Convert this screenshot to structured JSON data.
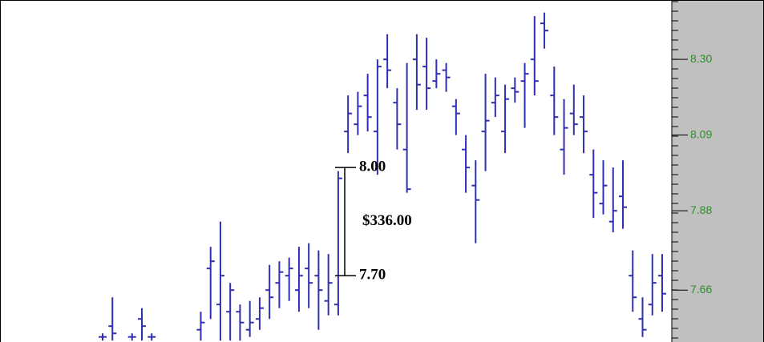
{
  "chart_data": {
    "type": "ohlc",
    "color": "#2f2fb0",
    "categories": [
      null,
      null,
      null,
      null,
      null,
      null,
      null,
      null,
      null,
      null,
      null,
      null,
      null,
      null,
      null,
      null,
      null,
      null,
      null,
      null,
      null,
      null,
      null,
      null,
      null,
      null,
      null,
      null,
      null,
      null,
      null,
      null,
      null,
      null,
      null,
      null,
      null,
      null,
      null,
      null,
      null,
      null,
      null,
      null,
      null,
      null,
      null,
      null,
      null,
      null,
      null,
      null,
      null,
      null,
      null,
      null,
      null,
      null
    ],
    "open": [
      7.53,
      7.56,
      null,
      7.53,
      7.58,
      7.53,
      null,
      null,
      null,
      null,
      7.55,
      7.72,
      7.62,
      7.6,
      7.6,
      7.55,
      7.58,
      7.66,
      7.68,
      7.7,
      7.66,
      7.72,
      7.7,
      7.63,
      7.62,
      8.1,
      8.12,
      8.2,
      8.1,
      8.3,
      8.18,
      8.05,
      8.3,
      8.28,
      8.24,
      8.27,
      8.17,
      8.05,
      7.95,
      8.1,
      8.18,
      8.1,
      8.22,
      8.24,
      8.3,
      8.4,
      8.2,
      8.05,
      8.15,
      8.14,
      7.98,
      7.9,
      7.85,
      7.92,
      7.7,
      7.58,
      7.62,
      7.7
    ],
    "high": [
      7.54,
      7.64,
      null,
      7.54,
      7.61,
      7.54,
      null,
      null,
      null,
      null,
      7.6,
      7.78,
      7.85,
      7.68,
      7.62,
      7.63,
      7.64,
      7.73,
      7.74,
      7.75,
      7.78,
      7.79,
      7.77,
      7.76,
      7.99,
      8.2,
      8.21,
      8.26,
      8.3,
      8.37,
      8.22,
      8.29,
      8.37,
      8.36,
      8.3,
      8.29,
      8.19,
      8.09,
      8.02,
      8.26,
      8.25,
      8.23,
      8.25,
      8.29,
      8.42,
      8.43,
      8.28,
      8.19,
      8.23,
      8.2,
      8.05,
      8.02,
      8.0,
      8.02,
      7.77,
      7.64,
      7.76,
      7.76
    ],
    "low": [
      7.52,
      7.52,
      null,
      7.52,
      7.52,
      7.52,
      null,
      null,
      null,
      null,
      7.52,
      7.58,
      7.52,
      7.52,
      7.52,
      7.53,
      7.55,
      7.58,
      7.61,
      7.63,
      7.6,
      7.61,
      7.55,
      7.59,
      7.59,
      8.04,
      8.09,
      8.1,
      7.98,
      8.22,
      8.05,
      7.93,
      8.16,
      8.16,
      8.22,
      8.21,
      8.09,
      7.93,
      7.79,
      7.99,
      8.14,
      8.04,
      8.18,
      8.11,
      8.2,
      8.33,
      8.09,
      7.98,
      8.09,
      8.04,
      7.86,
      7.87,
      7.82,
      7.83,
      7.6,
      7.53,
      7.59,
      7.6
    ],
    "close": [
      7.53,
      7.54,
      null,
      7.53,
      7.56,
      7.53,
      null,
      null,
      null,
      null,
      7.57,
      7.74,
      7.7,
      7.66,
      7.57,
      7.57,
      7.61,
      7.64,
      7.71,
      7.72,
      7.7,
      7.68,
      7.66,
      7.68,
      7.97,
      8.15,
      8.17,
      8.14,
      8.28,
      8.27,
      8.12,
      7.94,
      8.23,
      8.22,
      8.26,
      8.25,
      8.15,
      8.0,
      7.91,
      8.13,
      8.2,
      8.19,
      8.21,
      8.26,
      8.24,
      8.38,
      8.14,
      8.11,
      8.12,
      8.1,
      7.93,
      7.95,
      7.88,
      7.89,
      7.64,
      7.55,
      7.68,
      7.65
    ],
    "ylim": [
      7.516,
      8.447
    ],
    "yticks": [
      {
        "value": 8.3,
        "label": "8.30"
      },
      8.09,
      7.88,
      7.66
    ],
    "grid": false,
    "annotation": {
      "high": {
        "value": 8,
        "label": "8.00"
      },
      "low": {
        "value": 7.7,
        "label": "7.70"
      },
      "text": "$336.00"
    }
  }
}
